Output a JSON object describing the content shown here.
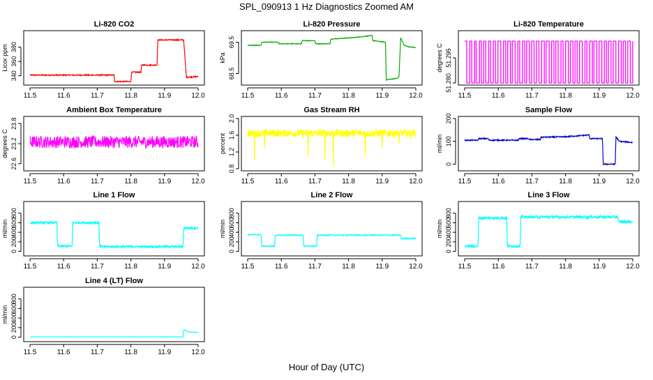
{
  "page": {
    "title": "SPL_090913  1 Hz Diagnostics Zoomed AM",
    "xlabel": "Hour of Day (UTC)"
  },
  "chart_data": [
    {
      "id": "co2",
      "type": "line",
      "title": "Li-820 CO2",
      "ylabel": "Licor ppm",
      "color": "#ff0000",
      "xlim": [
        11.5,
        12.0
      ],
      "ylim": [
        330,
        400
      ],
      "yticks": [
        "340",
        "360",
        "380"
      ],
      "noise": 0.8,
      "points": [
        [
          11.5,
          341
        ],
        [
          11.75,
          341
        ],
        [
          11.752,
          332
        ],
        [
          11.8,
          332
        ],
        [
          11.802,
          345
        ],
        [
          11.83,
          345
        ],
        [
          11.832,
          355
        ],
        [
          11.878,
          355
        ],
        [
          11.88,
          390
        ],
        [
          11.955,
          390
        ],
        [
          11.957,
          390
        ],
        [
          11.965,
          338
        ],
        [
          12.0,
          339
        ]
      ]
    },
    {
      "id": "pressure",
      "type": "line",
      "title": "Li-820 Pressure",
      "ylabel": "kPa",
      "color": "#00aa00",
      "xlim": [
        11.5,
        12.0
      ],
      "ylim": [
        68.2,
        69.8
      ],
      "yticks": [
        "68.5",
        "69.5"
      ],
      "noise": 0.01,
      "points": [
        [
          11.5,
          69.4
        ],
        [
          11.54,
          69.4
        ],
        [
          11.542,
          69.5
        ],
        [
          11.59,
          69.5
        ],
        [
          11.592,
          69.45
        ],
        [
          11.66,
          69.45
        ],
        [
          11.662,
          69.55
        ],
        [
          11.7,
          69.55
        ],
        [
          11.702,
          69.45
        ],
        [
          11.745,
          69.45
        ],
        [
          11.747,
          69.6
        ],
        [
          11.82,
          69.65
        ],
        [
          11.86,
          69.7
        ],
        [
          11.87,
          69.72
        ],
        [
          11.872,
          69.55
        ],
        [
          11.91,
          69.5
        ],
        [
          11.912,
          68.3
        ],
        [
          11.945,
          68.35
        ],
        [
          11.95,
          68.4
        ],
        [
          11.955,
          69.65
        ],
        [
          11.965,
          69.4
        ],
        [
          11.98,
          69.35
        ],
        [
          12.0,
          69.33
        ]
      ]
    },
    {
      "id": "licor-temp",
      "type": "line",
      "title": "Li-820 Temperature",
      "ylabel": "degrees C",
      "color": "#ff00ff",
      "xlim": [
        11.5,
        12.0
      ],
      "ylim": [
        51.28,
        51.31
      ],
      "yticks": [
        "51.280",
        "51.295"
      ],
      "digital": true,
      "low": 51.28,
      "high": 51.305
    },
    {
      "id": "box-temp",
      "type": "line",
      "title": "Ambient Box Temperature",
      "ylabel": "degrees C",
      "color": "#ff00ff",
      "xlim": [
        11.5,
        12.0
      ],
      "ylim": [
        22.45,
        23.95
      ],
      "yticks": [
        "22.6",
        "23.2",
        "23.8"
      ],
      "noise": 0.18,
      "points": [
        [
          11.5,
          23.25
        ],
        [
          12.0,
          23.25
        ]
      ]
    },
    {
      "id": "rh",
      "type": "line",
      "title": "Gas Stream RH",
      "ylabel": "percent",
      "color": "#ffff00",
      "xlim": [
        11.5,
        12.0
      ],
      "ylim": [
        0.8,
        2.0
      ],
      "yticks": [
        "0.8",
        "1.2",
        "1.6",
        "2.0"
      ],
      "noise": 0.09,
      "points": [
        [
          11.5,
          1.65
        ],
        [
          12.0,
          1.65
        ]
      ],
      "spikes": [
        [
          11.52,
          1.0
        ],
        [
          11.55,
          1.3
        ],
        [
          11.68,
          1.1
        ],
        [
          11.73,
          1.0
        ],
        [
          11.755,
          0.85
        ],
        [
          11.85,
          1.1
        ],
        [
          11.9,
          1.3
        ],
        [
          11.95,
          1.4
        ]
      ]
    },
    {
      "id": "sample-flow",
      "type": "line",
      "title": "Sample Flow",
      "ylabel": "ml/min",
      "color": "#0000cc",
      "xlim": [
        11.5,
        12.0
      ],
      "ylim": [
        -20,
        200
      ],
      "yticks": [
        "0",
        "100",
        "200"
      ],
      "noise": 2.5,
      "points": [
        [
          11.5,
          105
        ],
        [
          11.54,
          105
        ],
        [
          11.542,
          112
        ],
        [
          11.57,
          112
        ],
        [
          11.572,
          105
        ],
        [
          11.66,
          105
        ],
        [
          11.662,
          112
        ],
        [
          11.69,
          112
        ],
        [
          11.692,
          108
        ],
        [
          11.725,
          108
        ],
        [
          11.727,
          118
        ],
        [
          11.8,
          120
        ],
        [
          11.87,
          128
        ],
        [
          11.872,
          112
        ],
        [
          11.91,
          112
        ],
        [
          11.912,
          0
        ],
        [
          11.948,
          0
        ],
        [
          11.95,
          120
        ],
        [
          11.96,
          100
        ],
        [
          12.0,
          95
        ]
      ]
    },
    {
      "id": "line1",
      "type": "line",
      "title": "Line 1 Flow",
      "ylabel": "ml/min",
      "color": "#00ffff",
      "xlim": [
        11.5,
        12.0
      ],
      "ylim": [
        -50,
        1000
      ],
      "yticks": [
        "0",
        "200",
        "400",
        "600",
        "800"
      ],
      "noise": 22,
      "points": [
        [
          11.5,
          600
        ],
        [
          11.58,
          600
        ],
        [
          11.582,
          110
        ],
        [
          11.625,
          110
        ],
        [
          11.627,
          600
        ],
        [
          11.705,
          600
        ],
        [
          11.707,
          100
        ],
        [
          11.955,
          100
        ],
        [
          11.957,
          490
        ],
        [
          12.0,
          490
        ]
      ]
    },
    {
      "id": "line2",
      "type": "line",
      "title": "Line 2 Flow",
      "ylabel": "ml/min",
      "color": "#00ffff",
      "xlim": [
        11.5,
        12.0
      ],
      "ylim": [
        -50,
        1000
      ],
      "yticks": [
        "0",
        "200",
        "400",
        "600",
        "800"
      ],
      "noise": 10,
      "points": [
        [
          11.5,
          350
        ],
        [
          11.54,
          350
        ],
        [
          11.542,
          110
        ],
        [
          11.58,
          110
        ],
        [
          11.582,
          340
        ],
        [
          11.665,
          340
        ],
        [
          11.667,
          110
        ],
        [
          11.705,
          110
        ],
        [
          11.707,
          340
        ],
        [
          11.955,
          340
        ],
        [
          11.957,
          270
        ],
        [
          12.0,
          270
        ]
      ]
    },
    {
      "id": "line3",
      "type": "line",
      "title": "Line 3 Flow",
      "ylabel": "ml/min",
      "color": "#00ffff",
      "xlim": [
        11.5,
        12.0
      ],
      "ylim": [
        -50,
        1000
      ],
      "yticks": [
        "0",
        "200",
        "400",
        "600",
        "800"
      ],
      "noise": 28,
      "points": [
        [
          11.5,
          110
        ],
        [
          11.54,
          110
        ],
        [
          11.542,
          700
        ],
        [
          11.625,
          700
        ],
        [
          11.627,
          110
        ],
        [
          11.665,
          110
        ],
        [
          11.667,
          720
        ],
        [
          11.955,
          720
        ],
        [
          11.957,
          620
        ],
        [
          12.0,
          620
        ]
      ]
    },
    {
      "id": "line4",
      "type": "line",
      "title": "Line 4 (LT) Flow",
      "ylabel": "ml/min",
      "color": "#00ffff",
      "xlim": [
        11.5,
        12.0
      ],
      "ylim": [
        -50,
        1000
      ],
      "yticks": [
        "0",
        "200",
        "400",
        "600",
        "800"
      ],
      "noise": 2,
      "points": [
        [
          11.5,
          5
        ],
        [
          11.955,
          5
        ],
        [
          11.957,
          160
        ],
        [
          11.97,
          110
        ],
        [
          12.0,
          100
        ]
      ]
    }
  ],
  "xticks": [
    "11.5",
    "11.6",
    "11.7",
    "11.8",
    "11.9",
    "12.0"
  ]
}
